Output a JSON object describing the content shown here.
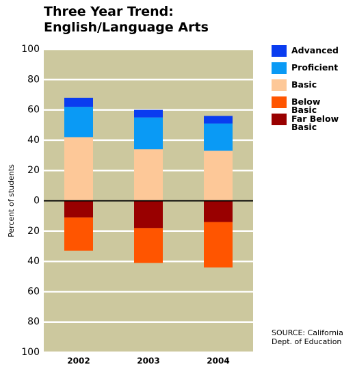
{
  "chart_data": {
    "type": "bar",
    "stacked": true,
    "title": [
      "Three Year Trend:",
      "English/Language Arts"
    ],
    "y_label": "Percent of students",
    "source": "SOURCE: California Dept. of Education",
    "categories": [
      "2002",
      "2003",
      "2004"
    ],
    "series": [
      {
        "name": "Advanced",
        "color": "#0a3cf0",
        "values": [
          6,
          5,
          5
        ]
      },
      {
        "name": "Proficient",
        "color": "#0a9af5",
        "values": [
          20,
          21,
          18
        ]
      },
      {
        "name": "Basic",
        "color": "#fdc898",
        "values": [
          42,
          34,
          33
        ]
      },
      {
        "name": "Below Basic",
        "color": "#ff5500",
        "values": [
          -22,
          -23,
          -30
        ]
      },
      {
        "name": "Far Below Basic",
        "color": "#990000",
        "values": [
          -11,
          -18,
          -14
        ]
      }
    ],
    "ylim": [
      -100,
      100
    ],
    "yticks": [
      {
        "value": -100,
        "label": "100"
      },
      {
        "value": -80,
        "label": "80"
      },
      {
        "value": -60,
        "label": "60"
      },
      {
        "value": -40,
        "label": "40"
      },
      {
        "value": -20,
        "label": "20"
      },
      0,
      20,
      40,
      60,
      80,
      100
    ],
    "grid": true,
    "legend": "right"
  }
}
